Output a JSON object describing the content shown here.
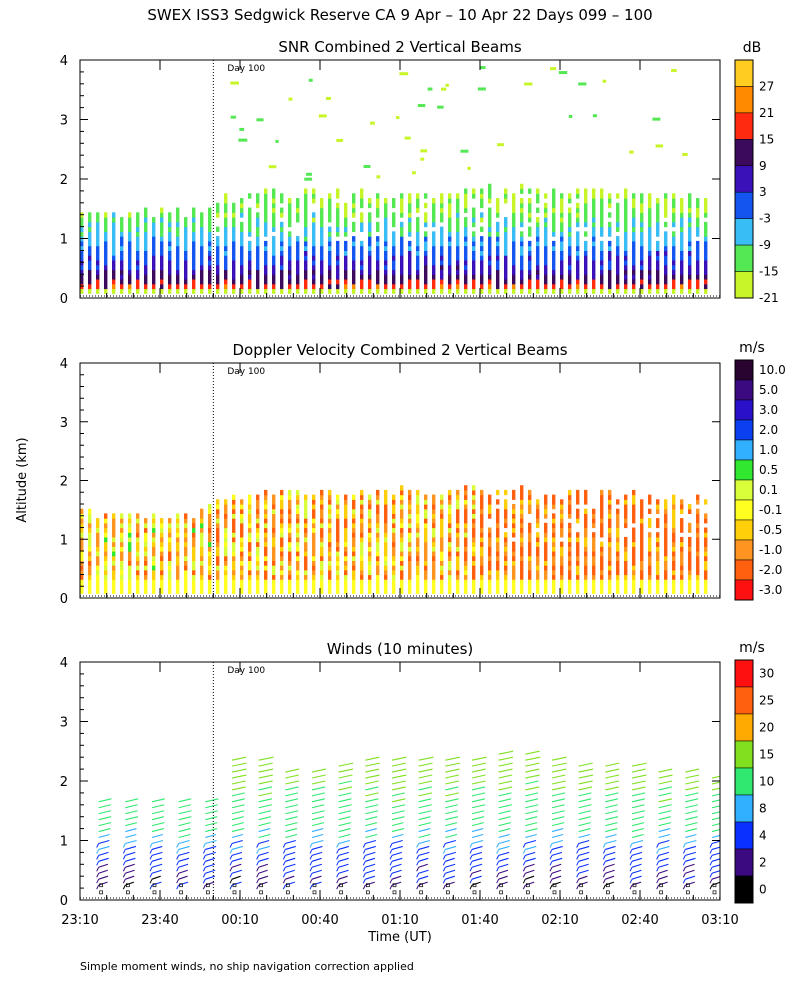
{
  "main_title": "SWEX ISS3 Sedgwick Reserve CA   9 Apr – 10 Apr 22 Days 099 – 100",
  "ylabel": "Altitude (km)",
  "xlabel": "Time (UT)",
  "footnote": "Simple moment winds, no ship navigation correction applied",
  "colors": {
    "snr": [
      "#c8f528",
      "#55e855",
      "#38bdf5",
      "#1455f0",
      "#3a10b8",
      "#3c0a5c",
      "#ff2a10",
      "#ff8a00",
      "#ffcc20"
    ],
    "vel": [
      "#ff1010",
      "#ff6010",
      "#ff9420",
      "#ffd00a",
      "#ffff20",
      "#d8ff3a",
      "#30e830",
      "#30b0ff",
      "#0a40f0",
      "#2a10c8",
      "#3c0a80",
      "#2a0430"
    ],
    "wind": [
      "#000000",
      "#3c0a80",
      "#0a30ff",
      "#30b0ff",
      "#30e870",
      "#80e020",
      "#ffaa00",
      "#ff6010",
      "#ff1010"
    ]
  },
  "chart_data": [
    {
      "type": "heatmap",
      "title": "SNR Combined 2 Vertical Beams",
      "annotation": "Day 100",
      "y_ticks": [
        "0",
        "1",
        "2",
        "3",
        "4"
      ],
      "x_ticks": [
        "23:10",
        "23:40",
        "00:10",
        "00:40",
        "01:10",
        "01:40",
        "02:10",
        "02:40",
        "03:10"
      ],
      "xlim": [
        "23:10",
        "03:10"
      ],
      "ylim": [
        0,
        4
      ],
      "colorbar": {
        "unit": "dB",
        "labels": [
          "27",
          "21",
          "15",
          "9",
          "3",
          "-3",
          "-9",
          "-15",
          "-21"
        ],
        "levels": [
          -21,
          -15,
          -9,
          -3,
          3,
          9,
          15,
          21,
          27,
          33
        ]
      },
      "echo_top_km": [
        {
          "t": "23:10",
          "top": 1.4
        },
        {
          "t": "23:55",
          "top": 1.4
        },
        {
          "t": "00:00",
          "top": 1.6
        },
        {
          "t": "00:20",
          "top": 1.75
        },
        {
          "t": "01:00",
          "top": 1.7
        },
        {
          "t": "01:40",
          "top": 1.8
        },
        {
          "t": "02:10",
          "top": 1.75
        },
        {
          "t": "02:40",
          "top": 1.75
        },
        {
          "t": "03:05",
          "top": 1.65
        }
      ],
      "value_profile": [
        {
          "alt": 0.1,
          "db": 21
        },
        {
          "alt": 0.3,
          "db": 12
        },
        {
          "alt": 0.45,
          "db": 6
        },
        {
          "alt": 0.7,
          "db": 0
        },
        {
          "alt": 1.0,
          "db": -6
        },
        {
          "alt": 1.3,
          "db": -12
        },
        {
          "alt": 1.6,
          "db": -15
        },
        {
          "alt": 2.8,
          "db": -21
        }
      ]
    },
    {
      "type": "heatmap",
      "title": "Doppler Velocity Combined 2 Vertical Beams",
      "annotation": "Day 100",
      "y_ticks": [
        "0",
        "1",
        "2",
        "3",
        "4"
      ],
      "xlim": [
        "23:10",
        "03:10"
      ],
      "ylim": [
        0,
        4
      ],
      "colorbar": {
        "unit": "m/s",
        "labels": [
          "10.0",
          "5.0",
          "3.0",
          "2.0",
          "1.0",
          "0.5",
          "0.1",
          "-0.1",
          "-0.5",
          "-1.0",
          "-2.0",
          "-3.0"
        ],
        "levels": [
          -3.0,
          -2.0,
          -1.0,
          -0.5,
          -0.1,
          0.1,
          0.5,
          1.0,
          2.0,
          3.0,
          5.0,
          10.0
        ]
      },
      "echo_top_km": [
        {
          "t": "23:10",
          "top": 1.4
        },
        {
          "t": "23:55",
          "top": 1.4
        },
        {
          "t": "00:00",
          "top": 1.6
        },
        {
          "t": "00:20",
          "top": 1.75
        },
        {
          "t": "01:40",
          "top": 1.8
        },
        {
          "t": "03:05",
          "top": 1.65
        }
      ],
      "typical_velocity_ms": [
        {
          "period": "23:10-00:00",
          "vel": -0.3
        },
        {
          "period": "00:00-01:40",
          "vel": -0.5
        },
        {
          "period": "01:40-03:10",
          "vel": -1.0
        }
      ]
    },
    {
      "type": "scatter",
      "title": "Winds (10 minutes)",
      "annotation": "Day 100",
      "y_ticks": [
        "0",
        "1",
        "2",
        "3",
        "4"
      ],
      "x_ticks": [
        "23:10",
        "23:40",
        "00:10",
        "00:40",
        "01:10",
        "01:40",
        "02:10",
        "02:40",
        "03:10"
      ],
      "xlim": [
        "23:10",
        "03:10"
      ],
      "ylim": [
        0,
        4
      ],
      "colorbar": {
        "unit": "m/s",
        "labels": [
          "30",
          "25",
          "20",
          "15",
          "10",
          "8",
          "4",
          "2",
          "0"
        ],
        "levels": [
          0,
          2,
          4,
          8,
          10,
          15,
          20,
          25,
          30,
          35
        ]
      },
      "profile_times": [
        "23:17",
        "23:27",
        "23:37",
        "23:47",
        "23:57",
        "00:07",
        "00:17",
        "00:27",
        "00:37",
        "00:47",
        "00:57",
        "01:07",
        "01:17",
        "01:27",
        "01:37",
        "01:47",
        "01:57",
        "02:07",
        "02:17",
        "02:27",
        "02:37",
        "02:47",
        "02:57",
        "03:07"
      ],
      "profile_tops_km": [
        1.7,
        1.7,
        1.7,
        1.7,
        1.7,
        2.4,
        2.45,
        2.2,
        2.25,
        2.3,
        2.4,
        2.45,
        2.4,
        2.4,
        2.45,
        2.5,
        2.5,
        2.4,
        2.35,
        2.35,
        2.3,
        2.25,
        2.25,
        2.1
      ],
      "speed_by_altitude_ms": [
        {
          "alt": 0.3,
          "spd": 3
        },
        {
          "alt": 0.6,
          "spd": 5
        },
        {
          "alt": 0.9,
          "spd": 8
        },
        {
          "alt": 1.2,
          "spd": 11
        },
        {
          "alt": 1.5,
          "spd": 13
        },
        {
          "alt": 1.8,
          "spd": 15
        },
        {
          "alt": 2.1,
          "spd": 17
        },
        {
          "alt": 2.4,
          "spd": 19
        }
      ]
    }
  ]
}
